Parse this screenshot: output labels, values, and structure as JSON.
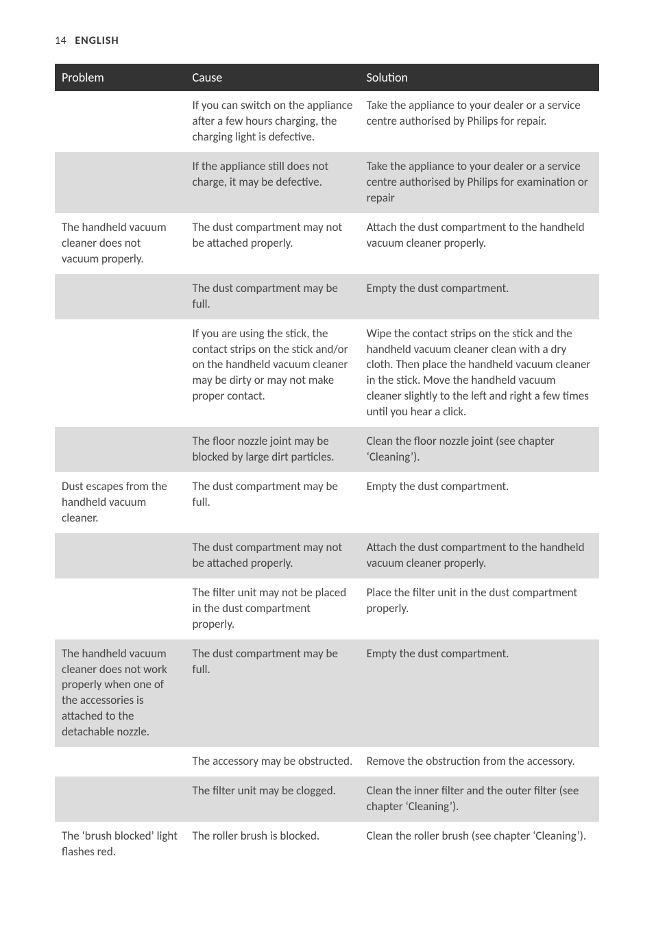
{
  "header": {
    "page_number": "14",
    "language": "ENGLISH"
  },
  "table": {
    "columns": [
      "Problem",
      "Cause",
      "Solution"
    ],
    "col_widths_pct": [
      24,
      32,
      44
    ],
    "header_bg": "#333333",
    "header_fg": "#ffffff",
    "shade_bg": "#dcdcdc",
    "text_color": "#444444",
    "font_size_pt": 13,
    "rows": [
      {
        "shade": false,
        "problem": "",
        "cause": "If you can switch on the appliance after a few hours charging, the charging light is defective.",
        "solution": "Take the appliance to your dealer or a service centre authorised by Philips for repair."
      },
      {
        "shade": true,
        "problem": "",
        "cause": "If the appliance still does not charge, it may be defective.",
        "solution": "Take the appliance to your dealer or a service centre authorised by Philips for examination or repair"
      },
      {
        "shade": false,
        "problem": "The handheld vacuum cleaner does not vacuum properly.",
        "cause": "The dust compartment may not be attached properly.",
        "solution": "Attach the dust compartment to the handheld vacuum cleaner properly."
      },
      {
        "shade": true,
        "problem": "",
        "cause": "The dust compartment may be full.",
        "solution": "Empty the dust compartment."
      },
      {
        "shade": false,
        "problem": "",
        "cause": "If you are using the stick, the contact strips on the stick and/or on the handheld vacuum cleaner may be dirty or may not make proper contact.",
        "solution": "Wipe the contact strips on the stick and the handheld vacuum cleaner clean with a dry cloth. Then place the handheld vacuum cleaner in the stick. Move the handheld vacuum cleaner slightly to the left and right a few times until you hear a click."
      },
      {
        "shade": true,
        "problem": "",
        "cause": "The floor nozzle joint may be blocked by large dirt particles.",
        "solution": "Clean the floor nozzle joint (see chapter ‘Cleaning’)."
      },
      {
        "shade": false,
        "problem": "Dust escapes from the handheld vacuum cleaner.",
        "cause": "The dust compartment may be full.",
        "solution": "Empty the dust compartment."
      },
      {
        "shade": true,
        "problem": "",
        "cause": "The dust compartment may not be attached properly.",
        "solution": "Attach the dust compartment to the handheld vacuum cleaner properly."
      },
      {
        "shade": false,
        "problem": "",
        "cause": "The filter unit may not be placed in the dust compartment properly.",
        "solution": "Place the filter unit in the dust compartment properly."
      },
      {
        "shade": true,
        "problem": "The handheld vacuum cleaner does not work properly when one of the accessories is attached to the detachable nozzle.",
        "cause": "The dust compartment may be full.",
        "solution": "Empty the dust compartment."
      },
      {
        "shade": false,
        "problem": "",
        "cause": "The accessory may be obstructed.",
        "solution": "Remove the obstruction from the accessory."
      },
      {
        "shade": true,
        "problem": "",
        "cause": "The filter unit may be clogged.",
        "solution": "Clean the inner filter and the outer filter (see chapter ‘Cleaning’)."
      },
      {
        "shade": false,
        "problem": "The ‘brush blocked’ light flashes red.",
        "cause": "The roller brush is blocked.",
        "solution": "Clean the roller brush (see chapter ‘Cleaning’)."
      }
    ]
  }
}
